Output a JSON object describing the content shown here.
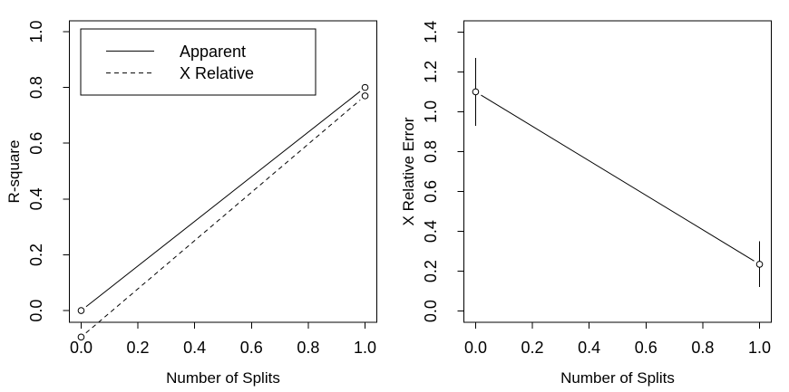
{
  "figure": {
    "background": "#ffffff",
    "foreground": "#000000",
    "description": "Two-panel R base-graphics line plot"
  },
  "chart_data": [
    {
      "type": "line",
      "title": "",
      "xlabel": "Number of Splits",
      "ylabel": "R-square",
      "x_tick_labels": [
        "0.0",
        "0.2",
        "0.4",
        "0.6",
        "0.8",
        "1.0"
      ],
      "y_tick_labels": [
        "0.0",
        "0.2",
        "0.4",
        "0.6",
        "0.8",
        "1.0"
      ],
      "xlim": [
        -0.0414,
        1.0414
      ],
      "ylim": [
        -0.042,
        1.039
      ],
      "grid": false,
      "legend": {
        "position": "top-left",
        "entries": [
          {
            "label": "Apparent",
            "line_style": "solid"
          },
          {
            "label": "X Relative",
            "line_style": "dashed"
          }
        ]
      },
      "series": [
        {
          "name": "Apparent",
          "line_style": "solid",
          "marker": "open-circle",
          "points": [
            {
              "x": 0.0,
              "y": 0.0
            },
            {
              "x": 1.0,
              "y": 0.8
            }
          ]
        },
        {
          "name": "X Relative",
          "line_style": "dashed",
          "marker": "open-circle",
          "points": [
            {
              "x": 0.0,
              "y": -0.095
            },
            {
              "x": 1.0,
              "y": 0.77
            }
          ]
        }
      ]
    },
    {
      "type": "line",
      "title": "",
      "xlabel": "Number of Splits",
      "ylabel": "X Relative Error",
      "x_tick_labels": [
        "0.0",
        "0.2",
        "0.4",
        "0.6",
        "0.8",
        "1.0"
      ],
      "y_tick_labels": [
        "0.0",
        "0.2",
        "0.4",
        "0.6",
        "0.8",
        "1.0",
        "1.2",
        "1.4"
      ],
      "xlim": [
        -0.0414,
        1.0414
      ],
      "ylim": [
        -0.056,
        1.456
      ],
      "grid": false,
      "series": [
        {
          "name": "X Relative Error",
          "line_style": "solid",
          "marker": "open-circle",
          "points": [
            {
              "x": 0.0,
              "y": 1.1,
              "error_low": 0.93,
              "error_high": 1.27
            },
            {
              "x": 1.0,
              "y": 0.235,
              "error_low": 0.12,
              "error_high": 0.35
            }
          ]
        }
      ]
    }
  ]
}
